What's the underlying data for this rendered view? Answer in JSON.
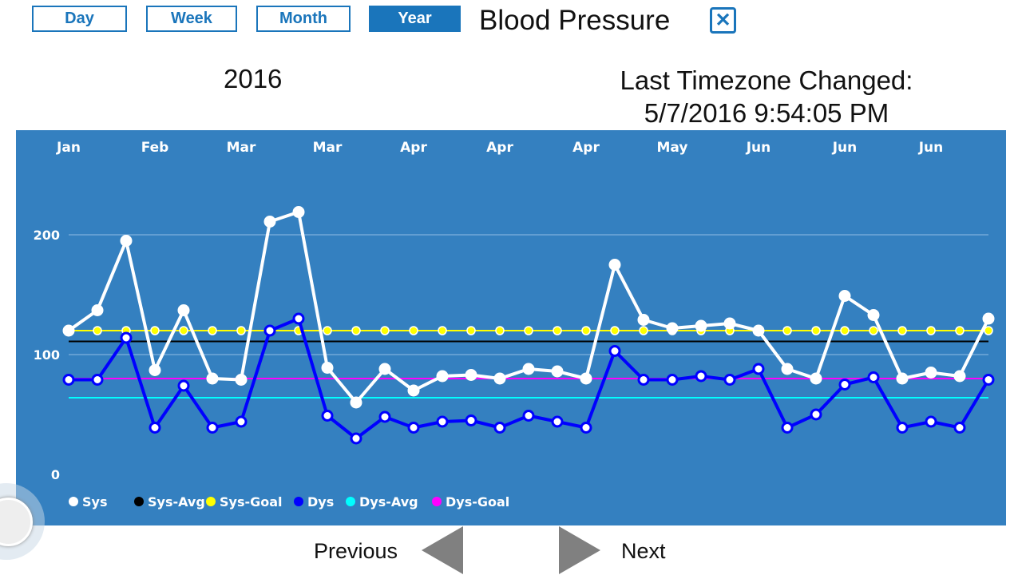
{
  "header": {
    "tabs": [
      {
        "label": "Day",
        "active": false
      },
      {
        "label": "Week",
        "active": false
      },
      {
        "label": "Month",
        "active": false
      },
      {
        "label": "Year",
        "active": true
      }
    ],
    "title": "Blood Pressure",
    "close_icon": "close-x-icon"
  },
  "period": "2016",
  "timezone": {
    "line1": "Last Timezone Changed:",
    "line2": "5/7/2016 9:54:05 PM"
  },
  "nav": {
    "previous": "Previous",
    "next": "Next"
  },
  "chart_data": {
    "type": "line",
    "x_tick_labels": [
      "Jan",
      "Feb",
      "Mar",
      "Mar",
      "Apr",
      "Apr",
      "Apr",
      "May",
      "Jun",
      "Jun",
      "Jun"
    ],
    "x_tick_every": 3,
    "y_ticks": [
      0,
      100,
      200
    ],
    "ylim": [
      0,
      230
    ],
    "grid": true,
    "legend_position": "bottom-left",
    "series": [
      {
        "name": "Sys",
        "color": "#ffffff",
        "values": [
          120,
          137,
          195,
          87,
          137,
          80,
          79,
          211,
          219,
          89,
          60,
          88,
          70,
          82,
          83,
          80,
          88,
          86,
          80,
          175,
          129,
          122,
          124,
          126,
          120,
          88,
          80,
          149,
          133,
          80,
          85,
          82,
          130
        ]
      },
      {
        "name": "Sys-Avg",
        "color": "#000000",
        "constant": 111
      },
      {
        "name": "Sys-Goal",
        "color": "#ffff00",
        "constant": 120,
        "markers": true
      },
      {
        "name": "Dys",
        "color": "#0000ff",
        "values": [
          79,
          79,
          114,
          39,
          74,
          39,
          44,
          120,
          130,
          49,
          30,
          48,
          39,
          44,
          45,
          39,
          49,
          44,
          39,
          103,
          79,
          79,
          82,
          79,
          88,
          39,
          50,
          75,
          81,
          39,
          44,
          39,
          79
        ]
      },
      {
        "name": "Dys-Avg",
        "color": "#00ffff",
        "constant": 64
      },
      {
        "name": "Dys-Goal",
        "color": "#ff00ff",
        "constant": 80
      }
    ]
  }
}
